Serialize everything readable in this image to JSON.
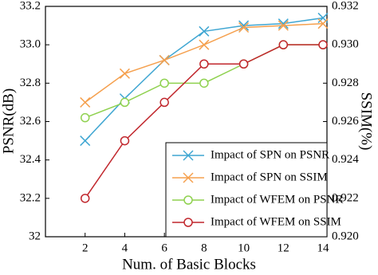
{
  "chart_data": {
    "type": "line",
    "x": [
      2,
      4,
      6,
      8,
      10,
      12,
      14
    ],
    "xlabel": "Num. of Basic Blocks",
    "ylabel": "PSNR(dB)",
    "y2label": "SSIM(%)",
    "xlim": [
      0,
      14.2
    ],
    "xticks": [
      2,
      4,
      6,
      8,
      10,
      12,
      14
    ],
    "ylim": [
      32,
      33.2
    ],
    "yticks": [
      32,
      32.2,
      32.4,
      32.6,
      32.8,
      {
        "value": 33,
        "label": "33.0"
      },
      33.2
    ],
    "y2lim": [
      0.92,
      0.932
    ],
    "y2ticks": [
      {
        "value": 0.92,
        "label": "0.920"
      },
      0.922,
      0.924,
      0.926,
      0.928,
      {
        "value": 0.93,
        "label": "0.930"
      },
      0.932
    ],
    "legend": "lower right",
    "series": [
      {
        "name": "Impact of SPN on PSNR",
        "color": "#3fa6d2",
        "marker": "x",
        "values": [
          32.5,
          32.72,
          32.92,
          33.07,
          33.1,
          33.11,
          33.14
        ]
      },
      {
        "name": "Impact of SPN on SSIM",
        "color": "#f5a04e",
        "marker": "x",
        "axis": "y2",
        "values": [
          0.927,
          0.9285,
          0.9292,
          0.93,
          0.9309,
          0.931,
          0.9311
        ]
      },
      {
        "name": "Impact of WFEM on PSNR",
        "color": "#8fd14f",
        "marker": "o",
        "values": [
          32.62,
          32.7,
          32.8,
          32.8,
          32.9,
          33.0,
          33.0
        ]
      },
      {
        "name": "Impact of WFEM on SSIM",
        "color": "#c1272d",
        "marker": "o",
        "axis": "y2",
        "values": [
          0.922,
          0.925,
          0.927,
          0.929,
          0.929,
          0.93,
          0.93
        ]
      }
    ]
  }
}
